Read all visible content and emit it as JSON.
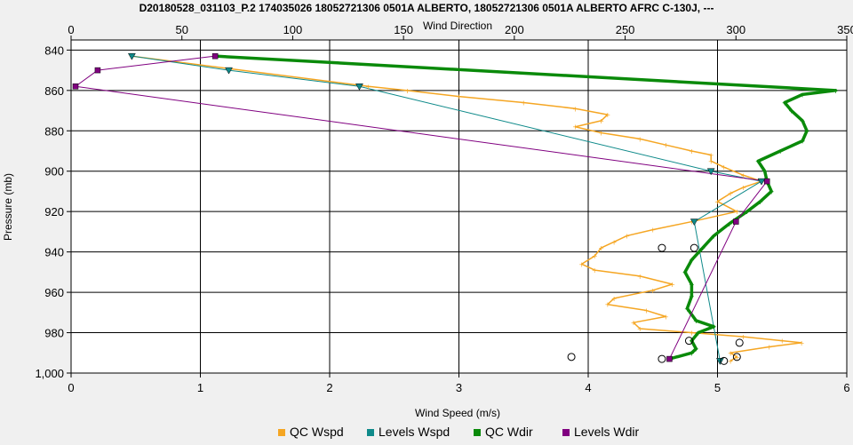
{
  "chart_data": {
    "type": "line",
    "title": "D20180528_031103_P.2 174035026 18052721306 0501A ALBERTO, 18052721306 0501A ALBERTO AFRC C-130J, ---",
    "xlabel": "Wind Speed (m/s)",
    "x2label": "Wind Direction",
    "ylabel": "Pressure (mb)",
    "xlim": [
      0,
      6
    ],
    "x2lim": [
      0,
      350
    ],
    "ylim": [
      1000,
      835
    ],
    "y_inverted": true,
    "grid": true,
    "legend_position": "bottom",
    "xticks": [
      "0",
      "1",
      "2",
      "3",
      "4",
      "5",
      "6"
    ],
    "x2ticks": [
      "0",
      "50",
      "100",
      "150",
      "200",
      "250",
      "300",
      "350"
    ],
    "yticks": [
      "840",
      "860",
      "880",
      "900",
      "920",
      "940",
      "960",
      "980",
      "1,000"
    ],
    "ytick_values": [
      840,
      860,
      880,
      900,
      920,
      940,
      960,
      980,
      1000
    ],
    "legend": [
      {
        "label": "QC Wspd",
        "color": "#f5a623"
      },
      {
        "label": "Levels Wspd",
        "color": "#0f8a8a"
      },
      {
        "label": "QC Wdir",
        "color": "#0a8a0a"
      },
      {
        "label": "Levels Wdir",
        "color": "#800080"
      }
    ],
    "series": [
      {
        "name": "QC Wspd",
        "axis": "speed",
        "color": "#f5a623",
        "points": [
          [
            0.47,
            843
          ],
          [
            2.3,
            858
          ],
          [
            2.6,
            860
          ],
          [
            3.0,
            863
          ],
          [
            3.5,
            866
          ],
          [
            3.9,
            869
          ],
          [
            4.15,
            872
          ],
          [
            4.1,
            875
          ],
          [
            3.9,
            878
          ],
          [
            4.1,
            881
          ],
          [
            4.4,
            884
          ],
          [
            4.6,
            887
          ],
          [
            4.8,
            890
          ],
          [
            4.95,
            892
          ],
          [
            4.95,
            895
          ],
          [
            5.05,
            898
          ],
          [
            5.2,
            902
          ],
          [
            5.34,
            905
          ],
          [
            5.2,
            908
          ],
          [
            5.1,
            911
          ],
          [
            5.0,
            915
          ],
          [
            5.15,
            920
          ],
          [
            4.8,
            925
          ],
          [
            4.5,
            929
          ],
          [
            4.3,
            932
          ],
          [
            4.2,
            935
          ],
          [
            4.1,
            938
          ],
          [
            4.05,
            942
          ],
          [
            3.95,
            946
          ],
          [
            4.05,
            949
          ],
          [
            4.4,
            952
          ],
          [
            4.65,
            956
          ],
          [
            4.5,
            959
          ],
          [
            4.2,
            963
          ],
          [
            4.15,
            966
          ],
          [
            4.45,
            969
          ],
          [
            4.6,
            972
          ],
          [
            4.35,
            975
          ],
          [
            4.4,
            978
          ],
          [
            4.8,
            980
          ],
          [
            5.2,
            982
          ],
          [
            5.5,
            984
          ],
          [
            5.65,
            985
          ],
          [
            5.4,
            987
          ],
          [
            5.1,
            990
          ],
          [
            5.15,
            992
          ],
          [
            5.1,
            994
          ]
        ]
      },
      {
        "name": "Levels Wspd",
        "axis": "speed",
        "color": "#0f8a8a",
        "points": [
          [
            0.47,
            843
          ],
          [
            1.22,
            850
          ],
          [
            2.23,
            858
          ],
          [
            4.95,
            900
          ],
          [
            5.34,
            905
          ],
          [
            4.82,
            925
          ],
          [
            5.02,
            994
          ]
        ]
      },
      {
        "name": "QC Wdir",
        "axis": "direction",
        "color": "#0a8a0a",
        "points": [
          [
            65,
            843
          ],
          [
            345,
            860
          ],
          [
            330,
            862
          ],
          [
            322,
            866
          ],
          [
            325,
            870
          ],
          [
            330,
            875
          ],
          [
            332,
            880
          ],
          [
            330,
            885
          ],
          [
            320,
            890
          ],
          [
            310,
            895
          ],
          [
            313,
            900
          ],
          [
            314,
            905
          ],
          [
            316,
            910
          ],
          [
            311,
            915
          ],
          [
            305,
            920
          ],
          [
            297,
            926
          ],
          [
            290,
            932
          ],
          [
            285,
            938
          ],
          [
            280,
            944
          ],
          [
            277,
            950
          ],
          [
            280,
            956
          ],
          [
            280,
            962
          ],
          [
            278,
            968
          ],
          [
            282,
            974
          ],
          [
            290,
            977
          ],
          [
            283,
            980
          ],
          [
            280,
            984
          ],
          [
            282,
            988
          ],
          [
            280,
            990
          ],
          [
            270,
            993
          ]
        ]
      },
      {
        "name": "Levels Wdir",
        "axis": "direction",
        "color": "#800080",
        "points": [
          [
            65,
            843
          ],
          [
            12,
            850
          ],
          [
            2,
            858
          ],
          [
            314,
            905
          ],
          [
            300,
            925
          ],
          [
            270,
            993
          ]
        ]
      }
    ],
    "open_circles_speed": [
      [
        4.57,
        938
      ],
      [
        4.82,
        938
      ],
      [
        3.87,
        992
      ],
      [
        5.17,
        985
      ],
      [
        5.15,
        992
      ],
      [
        4.78,
        984
      ],
      [
        4.57,
        993
      ],
      [
        5.05,
        994
      ]
    ]
  }
}
